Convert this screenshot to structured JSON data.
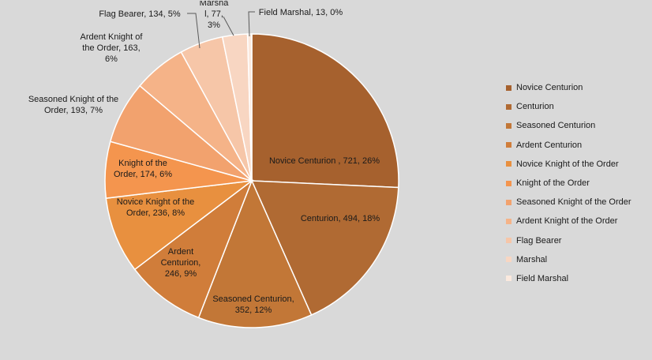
{
  "chart_data": {
    "type": "pie",
    "categories": [
      "Novice Centurion",
      "Centurion",
      "Seasoned Centurion",
      "Ardent Centurion",
      "Novice Knight of the Order",
      "Knight of the Order",
      "Seasoned Knight of the Order",
      "Ardent Knight of the Order",
      "Flag Bearer",
      "Marshal",
      "Field Marshal"
    ],
    "values": [
      721,
      494,
      352,
      246,
      236,
      174,
      193,
      163,
      134,
      77,
      13
    ],
    "percent_labels": [
      "26%",
      "18%",
      "12%",
      "9%",
      "8%",
      "6%",
      "7%",
      "6%",
      "5%",
      "3%",
      "0%"
    ],
    "data_labels": [
      [
        "Novice Centurion , 721, 26%"
      ],
      [
        "Centurion, 494, 18%"
      ],
      [
        "Seasoned Centurion,",
        "352, 12%"
      ],
      [
        "Ardent",
        "Centurion,",
        "246, 9%"
      ],
      [
        "Novice Knight of the",
        "Order, 236, 8%"
      ],
      [
        "Knight of the",
        "Order, 174, 6%"
      ],
      [
        "Seasoned Knight of the",
        "Order, 193, 7%"
      ],
      [
        "Ardent Knight of",
        "the Order, 163,",
        "6%"
      ],
      [
        "Flag Bearer, 134, 5%"
      ],
      [
        "Marsha",
        "l, 77,",
        "3%"
      ],
      [
        "Field Marshal, 13, 0%"
      ]
    ],
    "colors": [
      "#a6612e",
      "#b06a33",
      "#c27737",
      "#d07d3a",
      "#e8903f",
      "#f4954e",
      "#f2a26e",
      "#f5b388",
      "#f6c6a8",
      "#f8d6c2",
      "#fbe9de"
    ],
    "legend_position": "right",
    "title": ""
  }
}
